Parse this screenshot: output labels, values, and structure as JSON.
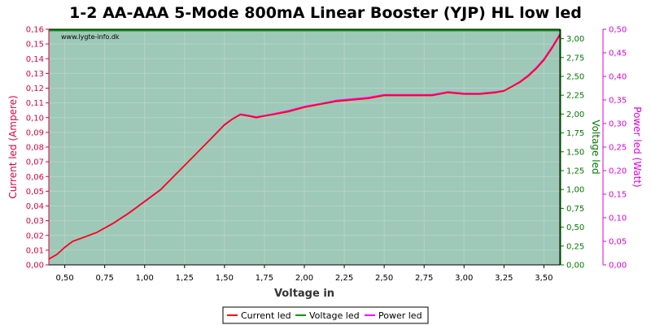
{
  "chart_data": {
    "type": "line",
    "title": "1-2 AA-AAA 5-Mode 800mA Linear Booster (YJP) HL low led",
    "watermark": "www.lygte-info.dk",
    "xlabel": "Voltage in",
    "xlim": [
      0.4,
      3.6
    ],
    "x_ticks": [
      "0,50",
      "0,75",
      "1,00",
      "1,25",
      "1,50",
      "1,75",
      "2,00",
      "2,25",
      "2,50",
      "2,75",
      "3,00",
      "3,25",
      "3,50"
    ],
    "y_left": {
      "label": "Current led (Ampere)",
      "lim": [
        0,
        0.16
      ],
      "ticks": [
        "0,00",
        "0,01",
        "0,02",
        "0,03",
        "0,04",
        "0,05",
        "0,06",
        "0,07",
        "0,08",
        "0,09",
        "0,10",
        "0,11",
        "0,12",
        "0,13",
        "0,14",
        "0,15",
        "0,16"
      ],
      "color": "#e0003c"
    },
    "y_right1": {
      "label": "Voltage led",
      "lim": [
        0,
        3.125
      ],
      "ticks": [
        "0,00",
        "0,25",
        "0,50",
        "0,75",
        "1,00",
        "1,25",
        "1,50",
        "1,75",
        "2,00",
        "2,25",
        "2,50",
        "2,75",
        "3,00"
      ],
      "color": "#007700"
    },
    "y_right2": {
      "label": "Power led (Watt)",
      "lim": [
        0,
        0.5
      ],
      "ticks": [
        "0,00",
        "0,05",
        "0,10",
        "0,15",
        "0,20",
        "0,25",
        "0,30",
        "0,35",
        "0,40",
        "0,45",
        "0,50"
      ],
      "color": "#dd00dd"
    },
    "grid": true,
    "background": "#9ec8b8",
    "series": [
      {
        "name": "Current led",
        "axis": "left",
        "color": "#ff0000",
        "x": [
          0.4,
          0.45,
          0.5,
          0.55,
          0.6,
          0.7,
          0.8,
          0.9,
          1.0,
          1.1,
          1.2,
          1.3,
          1.4,
          1.5,
          1.55,
          1.6,
          1.65,
          1.7,
          1.75,
          1.8,
          1.9,
          2.0,
          2.1,
          2.2,
          2.3,
          2.4,
          2.5,
          2.6,
          2.7,
          2.8,
          2.9,
          3.0,
          3.1,
          3.2,
          3.25,
          3.3,
          3.35,
          3.4,
          3.45,
          3.5,
          3.55,
          3.6
        ],
        "y": [
          0.004,
          0.007,
          0.012,
          0.016,
          0.018,
          0.022,
          0.028,
          0.035,
          0.043,
          0.051,
          0.062,
          0.073,
          0.084,
          0.095,
          0.099,
          0.102,
          0.101,
          0.1,
          0.101,
          0.102,
          0.104,
          0.107,
          0.109,
          0.111,
          0.112,
          0.113,
          0.115,
          0.115,
          0.115,
          0.115,
          0.117,
          0.116,
          0.116,
          0.117,
          0.118,
          0.121,
          0.124,
          0.128,
          0.133,
          0.139,
          0.147,
          0.156
        ]
      },
      {
        "name": "Voltage led",
        "axis": "right1",
        "color": "#009900",
        "x": [
          0.4,
          3.6
        ],
        "y": [
          3.125,
          3.125
        ]
      },
      {
        "name": "Power led",
        "axis": "right2",
        "color": "#ff00ff",
        "x": [
          0.4,
          0.45,
          0.5,
          0.55,
          0.6,
          0.7,
          0.8,
          0.9,
          1.0,
          1.1,
          1.2,
          1.3,
          1.4,
          1.5,
          1.55,
          1.6,
          1.65,
          1.7,
          1.75,
          1.8,
          1.9,
          2.0,
          2.1,
          2.2,
          2.3,
          2.4,
          2.5,
          2.6,
          2.7,
          2.8,
          2.9,
          3.0,
          3.1,
          3.2,
          3.25,
          3.3,
          3.35,
          3.4,
          3.45,
          3.5,
          3.55,
          3.6
        ],
        "y": [
          0.0125,
          0.022,
          0.037,
          0.05,
          0.056,
          0.069,
          0.088,
          0.11,
          0.135,
          0.16,
          0.194,
          0.228,
          0.263,
          0.298,
          0.31,
          0.32,
          0.317,
          0.314,
          0.317,
          0.32,
          0.327,
          0.336,
          0.342,
          0.349,
          0.352,
          0.355,
          0.361,
          0.361,
          0.361,
          0.361,
          0.367,
          0.364,
          0.364,
          0.367,
          0.37,
          0.379,
          0.389,
          0.402,
          0.418,
          0.437,
          0.462,
          0.49
        ]
      }
    ],
    "legend": {
      "position": "bottom-center",
      "items": [
        "Current led",
        "Voltage led",
        "Power led"
      ]
    }
  }
}
